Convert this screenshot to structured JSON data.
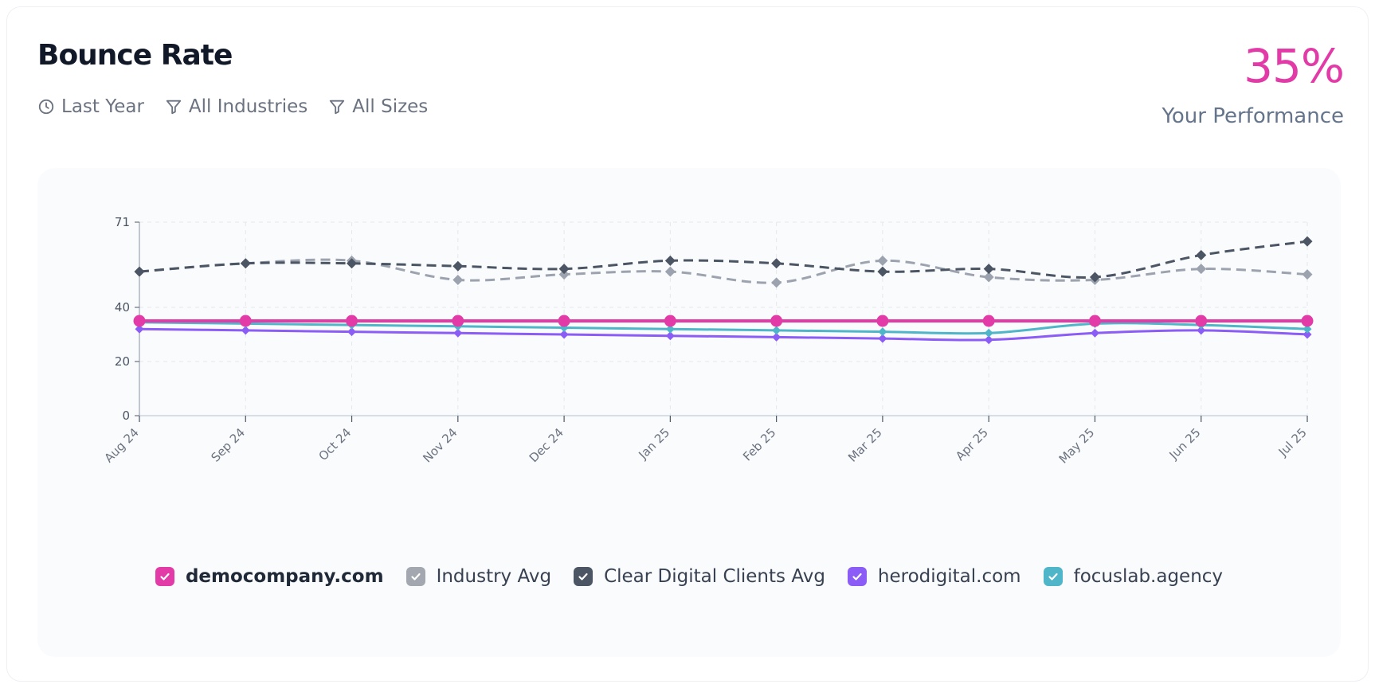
{
  "header": {
    "title": "Bounce Rate",
    "filters": [
      {
        "icon": "clock-icon",
        "label": "Last Year"
      },
      {
        "icon": "filter-icon",
        "label": "All Industries"
      },
      {
        "icon": "filter-icon",
        "label": "All Sizes"
      }
    ],
    "performance_value": "35%",
    "performance_label": "Your Performance"
  },
  "chart_data": {
    "type": "line",
    "x": [
      "Aug 24",
      "Sep 24",
      "Oct 24",
      "Nov 24",
      "Dec 24",
      "Jan 25",
      "Feb 25",
      "Mar 25",
      "Apr 25",
      "May 25",
      "Jun 25",
      "Jul 25"
    ],
    "yticks": [
      0,
      20,
      40,
      71
    ],
    "ylim": [
      0,
      71
    ],
    "grid": true,
    "legend_position": "bottom",
    "series": [
      {
        "name": "democompany.com",
        "color": "#e23ba7",
        "style": "solid",
        "values": [
          35,
          35,
          35,
          35,
          35,
          35,
          35,
          35,
          35,
          35,
          35,
          35
        ]
      },
      {
        "name": "Industry Avg",
        "color": "#9ca3af",
        "style": "dashed",
        "values": [
          53,
          56,
          57,
          50,
          52,
          53,
          49,
          57,
          51,
          50,
          54,
          52
        ]
      },
      {
        "name": "Clear Digital Clients Avg",
        "color": "#4b5563",
        "style": "dashed",
        "values": [
          53,
          56,
          56,
          55,
          54,
          57,
          56,
          53,
          54,
          51,
          59,
          64
        ]
      },
      {
        "name": "herodigital.com",
        "color": "#8b5cf6",
        "style": "solid",
        "values": [
          32,
          31.5,
          31,
          30.5,
          30,
          29.5,
          29,
          28.5,
          28,
          30.5,
          31.5,
          30
        ]
      },
      {
        "name": "focuslab.agency",
        "color": "#4fb5c9",
        "style": "solid",
        "values": [
          34.5,
          34,
          33.5,
          33,
          32.5,
          32,
          31.5,
          31,
          30.5,
          34,
          33.5,
          32
        ]
      }
    ]
  },
  "legend": [
    {
      "label": "democompany.com",
      "color": "#e23ba7"
    },
    {
      "label": "Industry Avg",
      "color": "#9ca3af"
    },
    {
      "label": "Clear Digital Clients Avg",
      "color": "#4b5563"
    },
    {
      "label": "herodigital.com",
      "color": "#8b5cf6"
    },
    {
      "label": "focuslab.agency",
      "color": "#4fb5c9"
    }
  ]
}
